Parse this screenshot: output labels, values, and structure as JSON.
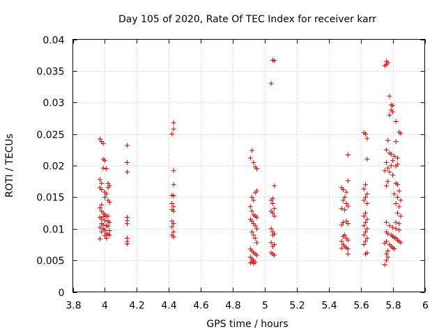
{
  "chart_data": {
    "type": "scatter",
    "title": "Day 105 of 2020, Rate Of TEC Index for receiver karr",
    "xlabel": "GPS time / hours",
    "ylabel": "ROTI / TECUs",
    "xlim": [
      3.8,
      6.0
    ],
    "ylim": [
      0,
      0.04
    ],
    "x_ticks": [
      3.8,
      4.0,
      4.2,
      4.4,
      4.6,
      4.8,
      5.0,
      5.2,
      5.4,
      5.6,
      5.8,
      6.0
    ],
    "x_tick_labels": [
      "3.8",
      "4",
      "4.2",
      "4.4",
      "4.6",
      "4.8",
      "5",
      "5.2",
      "5.4",
      "5.6",
      "5.8",
      "6"
    ],
    "y_ticks": [
      0,
      0.005,
      0.01,
      0.015,
      0.02,
      0.025,
      0.03,
      0.035,
      0.04
    ],
    "y_tick_labels": [
      "0",
      "0.005",
      "0.01",
      "0.015",
      "0.02",
      "0.025",
      "0.03",
      "0.035",
      "0.04"
    ],
    "grid": true,
    "marker": "+",
    "series": [
      {
        "name": "ROTI",
        "color": "#cc0000",
        "points": [
          [
            3.97,
            0.0242
          ],
          [
            3.98,
            0.0238
          ],
          [
            3.99,
            0.0235
          ],
          [
            3.99,
            0.021
          ],
          [
            4.0,
            0.0208
          ],
          [
            3.99,
            0.0196
          ],
          [
            4.01,
            0.0195
          ],
          [
            3.97,
            0.0178
          ],
          [
            3.98,
            0.0172
          ],
          [
            3.97,
            0.0165
          ],
          [
            3.98,
            0.0162
          ],
          [
            4.0,
            0.0158
          ],
          [
            4.01,
            0.0155
          ],
          [
            4.02,
            0.0172
          ],
          [
            4.03,
            0.0168
          ],
          [
            4.02,
            0.0165
          ],
          [
            4.0,
            0.015
          ],
          [
            4.02,
            0.0145
          ],
          [
            4.03,
            0.0142
          ],
          [
            3.98,
            0.0138
          ],
          [
            3.97,
            0.0133
          ],
          [
            3.98,
            0.0128
          ],
          [
            3.99,
            0.0125
          ],
          [
            4.0,
            0.0122
          ],
          [
            4.01,
            0.012
          ],
          [
            3.97,
            0.0118
          ],
          [
            3.98,
            0.0115
          ],
          [
            4.0,
            0.0113
          ],
          [
            4.02,
            0.0112
          ],
          [
            4.03,
            0.011
          ],
          [
            3.98,
            0.0108
          ],
          [
            3.99,
            0.0106
          ],
          [
            4.01,
            0.0105
          ],
          [
            4.02,
            0.0104
          ],
          [
            3.97,
            0.0102
          ],
          [
            3.99,
            0.01
          ],
          [
            4.0,
            0.0098
          ],
          [
            4.03,
            0.0097
          ],
          [
            3.98,
            0.0095
          ],
          [
            4.01,
            0.0093
          ],
          [
            4.02,
            0.0091
          ],
          [
            4.0,
            0.0089
          ],
          [
            3.97,
            0.0084
          ],
          [
            4.01,
            0.0085
          ],
          [
            4.03,
            0.009
          ],
          [
            4.02,
            0.012
          ],
          [
            3.99,
            0.0119
          ],
          [
            4.14,
            0.0232
          ],
          [
            4.14,
            0.0205
          ],
          [
            4.14,
            0.019
          ],
          [
            4.14,
            0.0118
          ],
          [
            4.14,
            0.0113
          ],
          [
            4.14,
            0.0108
          ],
          [
            4.14,
            0.0085
          ],
          [
            4.14,
            0.008
          ],
          [
            4.14,
            0.0076
          ],
          [
            4.43,
            0.0268
          ],
          [
            4.43,
            0.0258
          ],
          [
            4.42,
            0.025
          ],
          [
            4.43,
            0.0192
          ],
          [
            4.43,
            0.017
          ],
          [
            4.42,
            0.0153
          ],
          [
            4.43,
            0.0152
          ],
          [
            4.42,
            0.014
          ],
          [
            4.43,
            0.0135
          ],
          [
            4.42,
            0.013
          ],
          [
            4.43,
            0.0128
          ],
          [
            4.42,
            0.0112
          ],
          [
            4.43,
            0.0108
          ],
          [
            4.42,
            0.0103
          ],
          [
            4.43,
            0.0095
          ],
          [
            4.42,
            0.009
          ],
          [
            4.43,
            0.0087
          ],
          [
            4.92,
            0.0224
          ],
          [
            4.91,
            0.0212
          ],
          [
            4.93,
            0.0205
          ],
          [
            4.94,
            0.0198
          ],
          [
            4.95,
            0.0195
          ],
          [
            4.95,
            0.016
          ],
          [
            4.94,
            0.0157
          ],
          [
            4.92,
            0.015
          ],
          [
            4.93,
            0.0145
          ],
          [
            4.91,
            0.0135
          ],
          [
            4.92,
            0.0128
          ],
          [
            4.93,
            0.0122
          ],
          [
            4.94,
            0.012
          ],
          [
            4.95,
            0.0118
          ],
          [
            4.91,
            0.0115
          ],
          [
            4.92,
            0.0112
          ],
          [
            4.93,
            0.0108
          ],
          [
            4.94,
            0.0105
          ],
          [
            4.95,
            0.01
          ],
          [
            4.92,
            0.0095
          ],
          [
            4.93,
            0.009
          ],
          [
            4.94,
            0.0085
          ],
          [
            4.95,
            0.0078
          ],
          [
            4.91,
            0.0068
          ],
          [
            4.92,
            0.0065
          ],
          [
            4.93,
            0.0062
          ],
          [
            4.94,
            0.006
          ],
          [
            4.95,
            0.0058
          ],
          [
            4.91,
            0.0055
          ],
          [
            4.92,
            0.0052
          ],
          [
            4.93,
            0.005
          ],
          [
            4.92,
            0.0048
          ],
          [
            4.91,
            0.0046
          ],
          [
            4.93,
            0.0045
          ],
          [
            4.94,
            0.0047
          ],
          [
            5.05,
            0.0367
          ],
          [
            5.06,
            0.0366
          ],
          [
            5.04,
            0.033
          ],
          [
            5.06,
            0.0168
          ],
          [
            5.05,
            0.0148
          ],
          [
            5.04,
            0.0145
          ],
          [
            5.05,
            0.014
          ],
          [
            5.06,
            0.0132
          ],
          [
            5.04,
            0.0128
          ],
          [
            5.05,
            0.0125
          ],
          [
            5.06,
            0.012
          ],
          [
            5.04,
            0.01
          ],
          [
            5.05,
            0.0095
          ],
          [
            5.06,
            0.0092
          ],
          [
            5.05,
            0.009
          ],
          [
            5.04,
            0.0078
          ],
          [
            5.06,
            0.0075
          ],
          [
            5.05,
            0.0072
          ],
          [
            5.04,
            0.0062
          ],
          [
            5.05,
            0.006
          ],
          [
            5.06,
            0.0058
          ],
          [
            5.52,
            0.0217
          ],
          [
            5.48,
            0.0165
          ],
          [
            5.49,
            0.0162
          ],
          [
            5.51,
            0.0158
          ],
          [
            5.52,
            0.0176
          ],
          [
            5.5,
            0.015
          ],
          [
            5.49,
            0.0145
          ],
          [
            5.51,
            0.014
          ],
          [
            5.52,
            0.0136
          ],
          [
            5.48,
            0.0132
          ],
          [
            5.5,
            0.013
          ],
          [
            5.49,
            0.011
          ],
          [
            5.51,
            0.0112
          ],
          [
            5.52,
            0.0108
          ],
          [
            5.48,
            0.0106
          ],
          [
            5.5,
            0.009
          ],
          [
            5.49,
            0.0088
          ],
          [
            5.51,
            0.0085
          ],
          [
            5.52,
            0.0082
          ],
          [
            5.48,
            0.008
          ],
          [
            5.49,
            0.0075
          ],
          [
            5.5,
            0.0072
          ],
          [
            5.51,
            0.007
          ],
          [
            5.52,
            0.0068
          ],
          [
            5.48,
            0.0069
          ],
          [
            5.52,
            0.006
          ],
          [
            5.62,
            0.0252
          ],
          [
            5.63,
            0.025
          ],
          [
            5.64,
            0.0243
          ],
          [
            5.64,
            0.021
          ],
          [
            5.63,
            0.017
          ],
          [
            5.62,
            0.0163
          ],
          [
            5.64,
            0.0155
          ],
          [
            5.63,
            0.015
          ],
          [
            5.62,
            0.0145
          ],
          [
            5.64,
            0.014
          ],
          [
            5.63,
            0.0125
          ],
          [
            5.62,
            0.012
          ],
          [
            5.64,
            0.0115
          ],
          [
            5.63,
            0.011
          ],
          [
            5.62,
            0.0105
          ],
          [
            5.64,
            0.01
          ],
          [
            5.63,
            0.0095
          ],
          [
            5.62,
            0.009
          ],
          [
            5.64,
            0.0085
          ],
          [
            5.63,
            0.008
          ],
          [
            5.62,
            0.0075
          ],
          [
            5.64,
            0.0062
          ],
          [
            5.63,
            0.006
          ],
          [
            5.76,
            0.0365
          ],
          [
            5.77,
            0.0363
          ],
          [
            5.76,
            0.036
          ],
          [
            5.75,
            0.0358
          ],
          [
            5.78,
            0.031
          ],
          [
            5.79,
            0.0296
          ],
          [
            5.8,
            0.0295
          ],
          [
            5.79,
            0.0288
          ],
          [
            5.8,
            0.0285
          ],
          [
            5.78,
            0.028
          ],
          [
            5.82,
            0.027
          ],
          [
            5.84,
            0.0253
          ],
          [
            5.85,
            0.0251
          ],
          [
            5.82,
            0.0238
          ],
          [
            5.77,
            0.024
          ],
          [
            5.76,
            0.0225
          ],
          [
            5.78,
            0.022
          ],
          [
            5.79,
            0.0218
          ],
          [
            5.81,
            0.0215
          ],
          [
            5.83,
            0.0212
          ],
          [
            5.8,
            0.0208
          ],
          [
            5.76,
            0.0205
          ],
          [
            5.79,
            0.02
          ],
          [
            5.82,
            0.0199
          ],
          [
            5.83,
            0.0202
          ],
          [
            5.77,
            0.0196
          ],
          [
            5.75,
            0.0192
          ],
          [
            5.78,
            0.019
          ],
          [
            5.8,
            0.0185
          ],
          [
            5.82,
            0.0172
          ],
          [
            5.83,
            0.017
          ],
          [
            5.84,
            0.016
          ],
          [
            5.77,
            0.0175
          ],
          [
            5.76,
            0.0168
          ],
          [
            5.81,
            0.0155
          ],
          [
            5.83,
            0.015
          ],
          [
            5.85,
            0.0145
          ],
          [
            5.82,
            0.014
          ],
          [
            5.84,
            0.0135
          ],
          [
            5.83,
            0.0125
          ],
          [
            5.85,
            0.012
          ],
          [
            5.82,
            0.011
          ],
          [
            5.84,
            0.0108
          ],
          [
            5.76,
            0.011
          ],
          [
            5.78,
            0.0105
          ],
          [
            5.8,
            0.0102
          ],
          [
            5.82,
            0.01
          ],
          [
            5.84,
            0.0098
          ],
          [
            5.76,
            0.0095
          ],
          [
            5.77,
            0.0092
          ],
          [
            5.79,
            0.009
          ],
          [
            5.8,
            0.0088
          ],
          [
            5.81,
            0.0086
          ],
          [
            5.82,
            0.0085
          ],
          [
            5.83,
            0.0082
          ],
          [
            5.84,
            0.008
          ],
          [
            5.85,
            0.0078
          ],
          [
            5.76,
            0.008
          ],
          [
            5.75,
            0.0077
          ],
          [
            5.78,
            0.0075
          ],
          [
            5.79,
            0.0072
          ],
          [
            5.8,
            0.007
          ],
          [
            5.81,
            0.0068
          ],
          [
            5.77,
            0.0065
          ],
          [
            5.76,
            0.006
          ],
          [
            5.77,
            0.0055
          ],
          [
            5.76,
            0.005
          ],
          [
            5.75,
            0.0043
          ]
        ]
      }
    ]
  }
}
